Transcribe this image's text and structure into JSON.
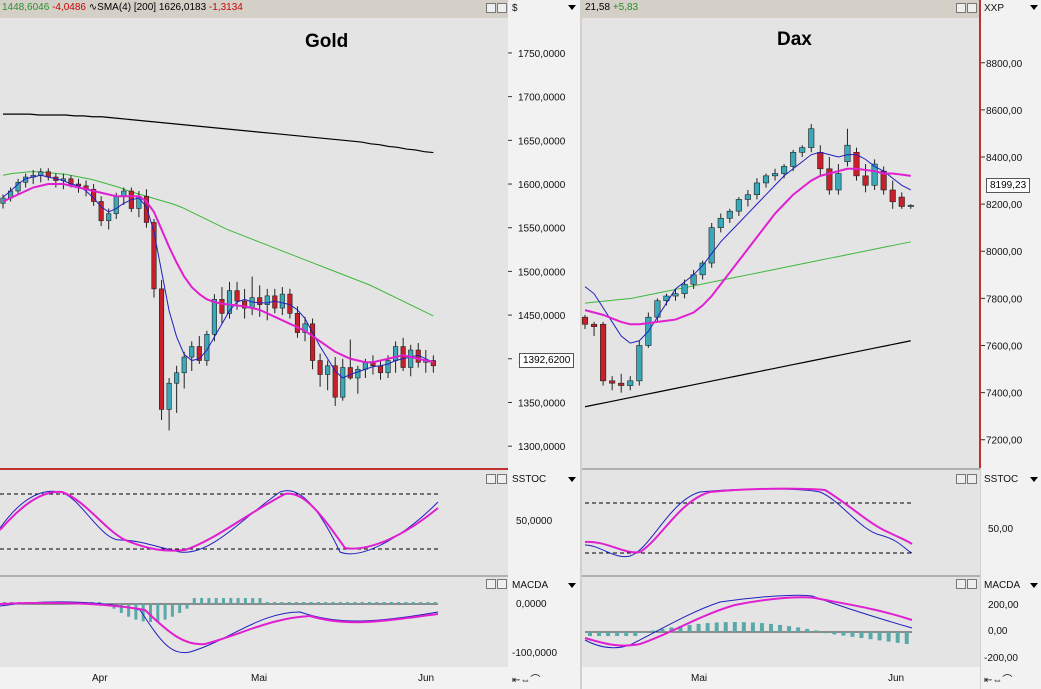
{
  "colors": {
    "up": "#3aa8b8",
    "down": "#c8202a",
    "sma_fast": "#2020c0",
    "sma_mag": "#e020d0",
    "sma_green": "#3cb83c",
    "sma_black": "#000000",
    "red_line": "#d02020"
  },
  "left": {
    "header": {
      "last": "1448,6046",
      "chg": "-4,0486",
      "sma_label": "SMA(4) [200]",
      "sma_val": "1626,0183",
      "sma_chg": "-1,3134"
    },
    "title": "Gold",
    "axis_unit": "$",
    "price_box": "1392,6200",
    "stoch_label": "SSTOC",
    "stoch_tick": "50,0000",
    "macd_label": "MACDA",
    "macd_ticks": [
      "0,0000",
      "-100,0000"
    ],
    "months": [
      "Apr",
      "Mai",
      "Jun"
    ]
  },
  "right": {
    "header": {
      "last": "21,58",
      "chg": "+5,83"
    },
    "title": "Dax",
    "axis_unit": "XXP",
    "price_box": "8199,23",
    "stoch_label": "SSTOC",
    "stoch_tick": "50,00",
    "macd_label": "MACDA",
    "macd_ticks": [
      "200,00",
      "0,00",
      "-200,00"
    ],
    "months": [
      "Mai",
      "Jun"
    ]
  },
  "chart_data": [
    {
      "type": "candlestick",
      "title": "Gold",
      "yticks": [
        1300,
        1350,
        1400,
        1450,
        1500,
        1550,
        1600,
        1650,
        1700,
        1750
      ],
      "ytick_labels": [
        "1300,0000",
        "1350,0000",
        "1400,0000",
        "1450,0000",
        "1500,0000",
        "1550,0000",
        "1600,0000",
        "1650,0000",
        "1700,0000",
        "1750,0000"
      ],
      "ylim": [
        1275,
        1790
      ],
      "last_price": 1392.62,
      "candles": [
        [
          1578,
          1588,
          1572,
          1584
        ],
        [
          1584,
          1596,
          1580,
          1592
        ],
        [
          1592,
          1606,
          1588,
          1602
        ],
        [
          1602,
          1612,
          1596,
          1608
        ],
        [
          1608,
          1616,
          1600,
          1610
        ],
        [
          1610,
          1618,
          1602,
          1614
        ],
        [
          1614,
          1618,
          1604,
          1608
        ],
        [
          1608,
          1612,
          1596,
          1604
        ],
        [
          1604,
          1612,
          1594,
          1606
        ],
        [
          1606,
          1610,
          1596,
          1600
        ],
        [
          1600,
          1606,
          1590,
          1598
        ],
        [
          1598,
          1604,
          1586,
          1594
        ],
        [
          1594,
          1600,
          1575,
          1580
        ],
        [
          1580,
          1586,
          1552,
          1558
        ],
        [
          1558,
          1572,
          1548,
          1566
        ],
        [
          1566,
          1590,
          1560,
          1586
        ],
        [
          1586,
          1596,
          1576,
          1592
        ],
        [
          1592,
          1596,
          1568,
          1572
        ],
        [
          1572,
          1592,
          1562,
          1586
        ],
        [
          1586,
          1594,
          1550,
          1556
        ],
        [
          1556,
          1560,
          1470,
          1480
        ],
        [
          1480,
          1490,
          1330,
          1342
        ],
        [
          1342,
          1378,
          1318,
          1372
        ],
        [
          1372,
          1392,
          1338,
          1384
        ],
        [
          1384,
          1408,
          1366,
          1402
        ],
        [
          1402,
          1420,
          1386,
          1414
        ],
        [
          1414,
          1426,
          1394,
          1398
        ],
        [
          1398,
          1432,
          1392,
          1428
        ],
        [
          1428,
          1474,
          1420,
          1468
        ],
        [
          1468,
          1482,
          1440,
          1452
        ],
        [
          1452,
          1488,
          1446,
          1478
        ],
        [
          1478,
          1488,
          1456,
          1466
        ],
        [
          1466,
          1480,
          1446,
          1458
        ],
        [
          1458,
          1494,
          1450,
          1470
        ],
        [
          1470,
          1484,
          1448,
          1462
        ],
        [
          1462,
          1480,
          1444,
          1472
        ],
        [
          1472,
          1480,
          1452,
          1458
        ],
        [
          1458,
          1482,
          1450,
          1474
        ],
        [
          1474,
          1480,
          1446,
          1452
        ],
        [
          1452,
          1460,
          1424,
          1430
        ],
        [
          1430,
          1448,
          1420,
          1440
        ],
        [
          1440,
          1446,
          1388,
          1398
        ],
        [
          1398,
          1406,
          1368,
          1382
        ],
        [
          1382,
          1398,
          1364,
          1392
        ],
        [
          1392,
          1402,
          1346,
          1356
        ],
        [
          1356,
          1400,
          1352,
          1390
        ],
        [
          1390,
          1422,
          1376,
          1378
        ],
        [
          1378,
          1392,
          1360,
          1388
        ],
        [
          1388,
          1400,
          1378,
          1396
        ],
        [
          1396,
          1404,
          1382,
          1392
        ],
        [
          1392,
          1398,
          1376,
          1384
        ],
        [
          1384,
          1404,
          1378,
          1398
        ],
        [
          1398,
          1420,
          1384,
          1414
        ],
        [
          1414,
          1424,
          1386,
          1390
        ],
        [
          1390,
          1416,
          1380,
          1410
        ],
        [
          1410,
          1418,
          1390,
          1396
        ],
        [
          1396,
          1410,
          1384,
          1398
        ],
        [
          1398,
          1404,
          1384,
          1392
        ]
      ],
      "ma_fast": [
        1585,
        1592,
        1600,
        1606,
        1608,
        1610,
        1608,
        1606,
        1604,
        1600,
        1598,
        1592,
        1584,
        1574,
        1568,
        1572,
        1578,
        1582,
        1584,
        1574,
        1545,
        1500,
        1455,
        1425,
        1405,
        1398,
        1400,
        1410,
        1425,
        1440,
        1455,
        1465,
        1468,
        1465,
        1464,
        1464,
        1466,
        1464,
        1462,
        1456,
        1446,
        1430,
        1414,
        1400,
        1386,
        1378,
        1382,
        1385,
        1388,
        1391,
        1392,
        1394,
        1398,
        1400,
        1402,
        1404,
        1400,
        1396
      ],
      "ma_mag": [
        1580,
        1584,
        1588,
        1592,
        1596,
        1598,
        1600,
        1600,
        1600,
        1598,
        1596,
        1594,
        1592,
        1590,
        1588,
        1586,
        1586,
        1586,
        1586,
        1580,
        1568,
        1548,
        1528,
        1510,
        1494,
        1482,
        1474,
        1468,
        1465,
        1463,
        1462,
        1461,
        1460,
        1458,
        1456,
        1452,
        1448,
        1444,
        1440,
        1436,
        1432,
        1426,
        1420,
        1414,
        1408,
        1404,
        1400,
        1398,
        1396,
        1396,
        1398,
        1400,
        1402,
        1404,
        1402,
        1400,
        1398,
        1396
      ],
      "ma_green": [
        1610,
        1612,
        1613,
        1614,
        1614,
        1613,
        1612,
        1611,
        1609,
        1607,
        1605,
        1602,
        1599,
        1596,
        1592,
        1589,
        1586,
        1583,
        1580,
        1577,
        1573,
        1568,
        1563,
        1558,
        1553,
        1548,
        1544,
        1540,
        1536,
        1532,
        1528,
        1524,
        1520,
        1516,
        1512,
        1508,
        1504,
        1500,
        1496,
        1492,
        1488,
        1484,
        1479,
        1474,
        1469,
        1464,
        1459,
        1454,
        1449
      ],
      "ma_black": [
        1680,
        1680,
        1680,
        1680,
        1679,
        1679,
        1679,
        1679,
        1678,
        1678,
        1677,
        1677,
        1676,
        1675,
        1674,
        1673,
        1672,
        1671,
        1670,
        1669,
        1668,
        1667,
        1666,
        1665,
        1664,
        1663,
        1662,
        1661,
        1660,
        1659,
        1658,
        1657,
        1656,
        1655,
        1654,
        1653,
        1652,
        1651,
        1650,
        1649,
        1648,
        1646,
        1645,
        1643,
        1642,
        1640,
        1639,
        1637,
        1636
      ]
    },
    {
      "type": "candlestick",
      "title": "Dax",
      "yticks": [
        7200,
        7400,
        7600,
        7800,
        8000,
        8200,
        8400,
        8600,
        8800
      ],
      "ytick_labels": [
        "7200,00",
        "7400,00",
        "7600,00",
        "7800,00",
        "8000,00",
        "8200,00",
        "8400,00",
        "8600,00",
        "8800,00"
      ],
      "ylim": [
        7080,
        8990
      ],
      "last_price": 8199.23,
      "candles": [
        [
          7720,
          7730,
          7670,
          7690
        ],
        [
          7690,
          7700,
          7640,
          7680
        ],
        [
          7690,
          7700,
          7430,
          7450
        ],
        [
          7450,
          7470,
          7410,
          7440
        ],
        [
          7440,
          7480,
          7400,
          7430
        ],
        [
          7430,
          7470,
          7410,
          7450
        ],
        [
          7450,
          7620,
          7430,
          7600
        ],
        [
          7600,
          7740,
          7590,
          7720
        ],
        [
          7720,
          7800,
          7700,
          7790
        ],
        [
          7790,
          7820,
          7770,
          7810
        ],
        [
          7810,
          7840,
          7790,
          7820
        ],
        [
          7820,
          7880,
          7800,
          7860
        ],
        [
          7860,
          7920,
          7840,
          7900
        ],
        [
          7900,
          7960,
          7880,
          7950
        ],
        [
          7950,
          8120,
          7930,
          8100
        ],
        [
          8100,
          8160,
          8080,
          8140
        ],
        [
          8140,
          8180,
          8120,
          8170
        ],
        [
          8170,
          8230,
          8150,
          8220
        ],
        [
          8220,
          8260,
          8190,
          8240
        ],
        [
          8240,
          8310,
          8220,
          8290
        ],
        [
          8290,
          8330,
          8270,
          8320
        ],
        [
          8320,
          8350,
          8300,
          8330
        ],
        [
          8330,
          8370,
          8310,
          8360
        ],
        [
          8360,
          8430,
          8340,
          8420
        ],
        [
          8420,
          8450,
          8400,
          8440
        ],
        [
          8440,
          8540,
          8420,
          8520
        ],
        [
          8420,
          8450,
          8320,
          8350
        ],
        [
          8350,
          8400,
          8240,
          8260
        ],
        [
          8260,
          8370,
          8240,
          8330
        ],
        [
          8380,
          8520,
          8360,
          8450
        ],
        [
          8420,
          8440,
          8300,
          8320
        ],
        [
          8320,
          8370,
          8250,
          8280
        ],
        [
          8280,
          8390,
          8260,
          8370
        ],
        [
          8340,
          8360,
          8240,
          8260
        ],
        [
          8260,
          8300,
          8180,
          8210
        ],
        [
          8230,
          8250,
          8180,
          8190
        ],
        [
          8190,
          8200,
          8180,
          8195
        ]
      ],
      "ma_fast": [
        7850,
        7820,
        7760,
        7700,
        7640,
        7610,
        7620,
        7660,
        7720,
        7780,
        7840,
        7870,
        7900,
        7940,
        7990,
        8040,
        8080,
        8120,
        8160,
        8200,
        8240,
        8280,
        8320,
        8350,
        8380,
        8410,
        8420,
        8410,
        8400,
        8410,
        8410,
        8390,
        8360,
        8340,
        8310,
        8280,
        8260
      ],
      "ma_mag": [
        7750,
        7740,
        7730,
        7715,
        7700,
        7690,
        7690,
        7695,
        7700,
        7705,
        7710,
        7725,
        7740,
        7770,
        7810,
        7860,
        7910,
        7960,
        8010,
        8060,
        8110,
        8160,
        8200,
        8240,
        8270,
        8300,
        8320,
        8330,
        8340,
        8350,
        8350,
        8345,
        8340,
        8330,
        8330,
        8325,
        8320
      ],
      "ma_green": [
        7780,
        7785,
        7790,
        7795,
        7800,
        7810,
        7820,
        7830,
        7840,
        7850,
        7860,
        7870,
        7880,
        7890,
        7900,
        7910,
        7920,
        7930,
        7940,
        7950,
        7960,
        7970,
        7980,
        7990,
        8000,
        8010,
        8020,
        8030,
        8040
      ],
      "ma_black": [
        7340,
        7350,
        7360,
        7370,
        7380,
        7390,
        7400,
        7410,
        7420,
        7430,
        7440,
        7450,
        7460,
        7470,
        7480,
        7490,
        7500,
        7510,
        7520,
        7530,
        7540,
        7550,
        7560,
        7570,
        7580,
        7590,
        7600,
        7610,
        7620
      ]
    }
  ]
}
